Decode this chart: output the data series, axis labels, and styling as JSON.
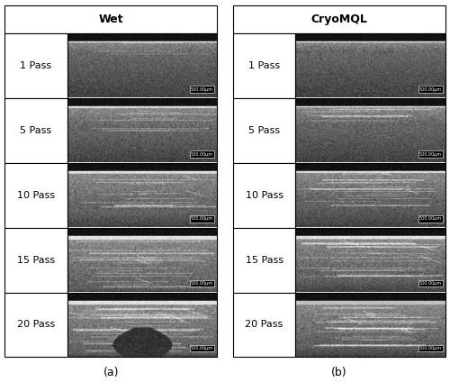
{
  "title_left": "Wet",
  "title_right": "CryoMQL",
  "row_labels": [
    "1 Pass",
    "5 Pass",
    "10 Pass",
    "15 Pass",
    "20 Pass"
  ],
  "caption_left": "(a)",
  "caption_right": "(b)",
  "scale_bar_text": "500.00μm",
  "background_color": "#ffffff",
  "title_fontsize": 9,
  "label_fontsize": 8,
  "caption_fontsize": 9,
  "scalebar_fontsize": 3.5
}
